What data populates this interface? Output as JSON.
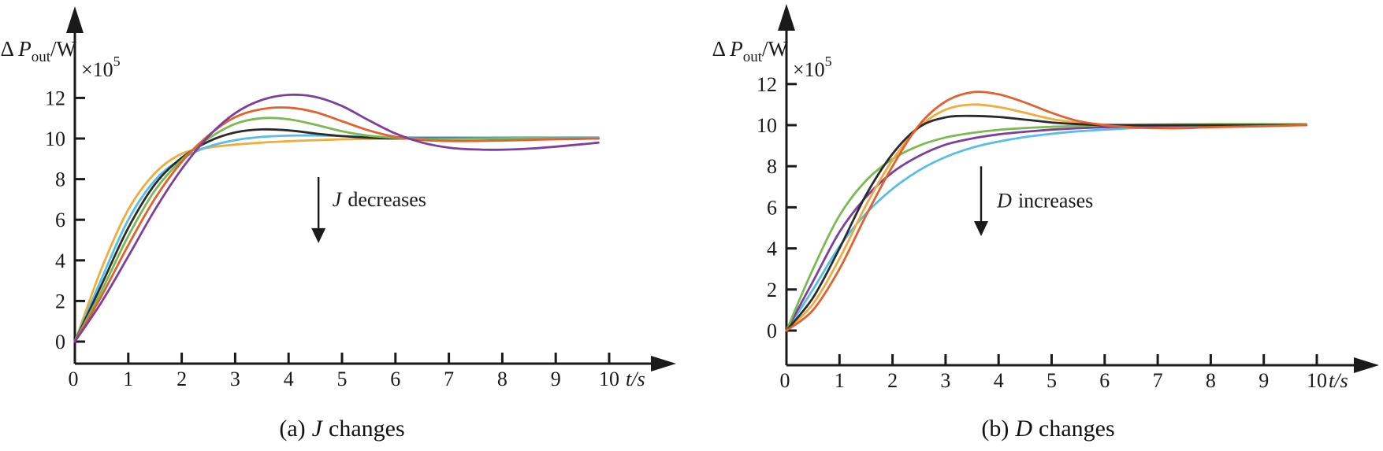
{
  "figure": {
    "background": "#ffffff",
    "axis_color": "#1a1a1a"
  },
  "labels": {
    "y_axis": {
      "prefix": "Δ ",
      "variable": "P",
      "subscript": "out",
      "suffix": "/W"
    },
    "scale": {
      "base": "×10",
      "exponent": "5"
    },
    "x_axis": {
      "variable": "t",
      "suffix": "/s"
    }
  },
  "chart_data": [
    {
      "id": "a",
      "type": "line",
      "title": "(a) J changes",
      "xlabel": "t/s",
      "ylabel": "ΔPout/W (×10^5 W)",
      "xlim": [
        0,
        10
      ],
      "ylim": [
        0,
        12
      ],
      "grid": false,
      "legend": "none",
      "x_ticks": [
        "0",
        "1",
        "2",
        "3",
        "4",
        "5",
        "6",
        "7",
        "8",
        "9",
        "10"
      ],
      "y_ticks": [
        "0",
        "2",
        "4",
        "6",
        "8",
        "10",
        "12"
      ],
      "caption": {
        "index": "(a)",
        "variable": "J",
        "rest": "changes"
      },
      "annotation": {
        "variable": "J",
        "rest": "decreases",
        "direction": "down",
        "arrow": {
          "t": 4.56,
          "v_from": 8.1,
          "v_to": 4.85
        },
        "text_pos": {
          "t": 4.82,
          "v": 6.67
        }
      },
      "series": [
        {
          "name": "yellow",
          "color": "#F2AC3C",
          "points": [
            [
              0,
              0
            ],
            [
              0.5,
              3.6
            ],
            [
              1,
              6.5
            ],
            [
              1.5,
              8.3
            ],
            [
              2,
              9.25
            ],
            [
              2.5,
              9.55
            ],
            [
              3,
              9.7
            ],
            [
              3.5,
              9.8
            ],
            [
              4,
              9.87
            ],
            [
              4.5,
              9.92
            ],
            [
              5,
              9.96
            ],
            [
              5.5,
              9.98
            ],
            [
              6,
              10
            ],
            [
              7,
              10
            ],
            [
              8,
              10
            ],
            [
              9,
              10
            ],
            [
              9.8,
              10
            ]
          ]
        },
        {
          "name": "blue",
          "color": "#56BEE8",
          "points": [
            [
              0,
              0
            ],
            [
              0.5,
              3.1
            ],
            [
              1,
              6.0
            ],
            [
              1.5,
              7.95
            ],
            [
              2,
              9.0
            ],
            [
              2.5,
              9.6
            ],
            [
              3,
              9.92
            ],
            [
              3.5,
              10.08
            ],
            [
              4,
              10.14
            ],
            [
              4.5,
              10.15
            ],
            [
              5,
              10.12
            ],
            [
              5.5,
              10.08
            ],
            [
              6,
              10.06
            ],
            [
              7,
              10.05
            ],
            [
              8,
              10.05
            ],
            [
              9,
              10.05
            ],
            [
              9.8,
              10.05
            ]
          ]
        },
        {
          "name": "black",
          "color": "#2B2B2B",
          "points": [
            [
              0,
              0
            ],
            [
              0.5,
              2.8
            ],
            [
              1,
              5.6
            ],
            [
              1.5,
              7.75
            ],
            [
              2,
              9.05
            ],
            [
              2.5,
              9.85
            ],
            [
              3,
              10.3
            ],
            [
              3.5,
              10.45
            ],
            [
              4,
              10.4
            ],
            [
              4.5,
              10.25
            ],
            [
              5,
              10.12
            ],
            [
              5.5,
              10.04
            ],
            [
              6,
              10
            ],
            [
              7,
              10
            ],
            [
              8,
              10
            ],
            [
              9,
              10
            ],
            [
              9.8,
              10
            ]
          ]
        },
        {
          "name": "green",
          "color": "#7CBA51",
          "points": [
            [
              0,
              0
            ],
            [
              0.5,
              2.5
            ],
            [
              1,
              5.2
            ],
            [
              1.5,
              7.45
            ],
            [
              2,
              8.95
            ],
            [
              2.5,
              10.0
            ],
            [
              3,
              10.72
            ],
            [
              3.5,
              11.0
            ],
            [
              4,
              10.95
            ],
            [
              4.5,
              10.68
            ],
            [
              5,
              10.36
            ],
            [
              5.5,
              10.14
            ],
            [
              6,
              10.03
            ],
            [
              6.5,
              9.98
            ],
            [
              7,
              9.98
            ],
            [
              8,
              10
            ],
            [
              9,
              10
            ],
            [
              9.8,
              10
            ]
          ]
        },
        {
          "name": "orange",
          "color": "#E2612F",
          "points": [
            [
              0,
              0
            ],
            [
              0.5,
              2.25
            ],
            [
              1,
              4.75
            ],
            [
              1.5,
              7.05
            ],
            [
              2,
              8.85
            ],
            [
              2.5,
              10.15
            ],
            [
              3,
              11.05
            ],
            [
              3.5,
              11.45
            ],
            [
              4,
              11.52
            ],
            [
              4.5,
              11.3
            ],
            [
              5,
              10.85
            ],
            [
              5.5,
              10.4
            ],
            [
              6,
              10.08
            ],
            [
              6.5,
              9.93
            ],
            [
              7,
              9.88
            ],
            [
              7.5,
              9.88
            ],
            [
              8,
              9.9
            ],
            [
              8.5,
              9.93
            ],
            [
              9,
              9.96
            ],
            [
              9.8,
              10
            ]
          ]
        },
        {
          "name": "purple",
          "color": "#7E3F9C",
          "points": [
            [
              0,
              0
            ],
            [
              0.5,
              1.95
            ],
            [
              1,
              4.2
            ],
            [
              1.5,
              6.5
            ],
            [
              2,
              8.5
            ],
            [
              2.5,
              10.1
            ],
            [
              3,
              11.25
            ],
            [
              3.5,
              11.9
            ],
            [
              4,
              12.15
            ],
            [
              4.5,
              12.05
            ],
            [
              5,
              11.6
            ],
            [
              5.5,
              10.9
            ],
            [
              6,
              10.25
            ],
            [
              6.5,
              9.8
            ],
            [
              7,
              9.55
            ],
            [
              7.5,
              9.46
            ],
            [
              8,
              9.45
            ],
            [
              8.5,
              9.5
            ],
            [
              9,
              9.6
            ],
            [
              9.5,
              9.72
            ],
            [
              9.8,
              9.8
            ]
          ]
        }
      ]
    },
    {
      "id": "b",
      "type": "line",
      "title": "(b) D changes",
      "xlabel": "t/s",
      "ylabel": "ΔPout/W (×10^5 W)",
      "xlim": [
        0,
        10
      ],
      "ylim": [
        0,
        12
      ],
      "grid": false,
      "legend": "none",
      "x_ticks": [
        "0",
        "1",
        "2",
        "3",
        "4",
        "5",
        "6",
        "7",
        "8",
        "9",
        "10"
      ],
      "y_ticks": [
        "0",
        "2",
        "4",
        "6",
        "8",
        "10",
        "12"
      ],
      "caption": {
        "index": "(b)",
        "variable": "D",
        "rest": "changes"
      },
      "annotation": {
        "variable": "D",
        "rest": "increases",
        "direction": "down",
        "arrow": {
          "t": 3.67,
          "v_from": 8.0,
          "v_to": 4.6
        },
        "text_pos": {
          "t": 3.97,
          "v": 6.0
        }
      },
      "series": [
        {
          "name": "blue",
          "color": "#56BEE8",
          "points": [
            [
              0,
              0
            ],
            [
              0.5,
              2.0
            ],
            [
              1,
              4.1
            ],
            [
              1.5,
              5.7
            ],
            [
              2,
              6.9
            ],
            [
              2.5,
              7.8
            ],
            [
              3,
              8.45
            ],
            [
              3.5,
              8.9
            ],
            [
              4,
              9.2
            ],
            [
              4.5,
              9.42
            ],
            [
              5,
              9.58
            ],
            [
              5.5,
              9.7
            ],
            [
              6,
              9.78
            ],
            [
              6.5,
              9.85
            ],
            [
              7,
              9.9
            ],
            [
              8,
              9.97
            ],
            [
              9,
              10
            ],
            [
              9.8,
              10
            ]
          ]
        },
        {
          "name": "purple",
          "color": "#7E3F9C",
          "points": [
            [
              0,
              0
            ],
            [
              0.5,
              2.4
            ],
            [
              1,
              4.8
            ],
            [
              1.5,
              6.5
            ],
            [
              2,
              7.7
            ],
            [
              2.5,
              8.5
            ],
            [
              3,
              9.05
            ],
            [
              3.5,
              9.35
            ],
            [
              4,
              9.55
            ],
            [
              4.5,
              9.68
            ],
            [
              5,
              9.78
            ],
            [
              5.5,
              9.85
            ],
            [
              6,
              9.9
            ],
            [
              7,
              9.96
            ],
            [
              8,
              10
            ],
            [
              9,
              10
            ],
            [
              9.8,
              10
            ]
          ]
        },
        {
          "name": "green",
          "color": "#7CBA51",
          "points": [
            [
              0,
              0
            ],
            [
              0.5,
              3.0
            ],
            [
              1,
              5.6
            ],
            [
              1.5,
              7.3
            ],
            [
              2,
              8.35
            ],
            [
              2.5,
              9.0
            ],
            [
              3,
              9.4
            ],
            [
              3.5,
              9.62
            ],
            [
              4,
              9.77
            ],
            [
              4.5,
              9.86
            ],
            [
              5,
              9.92
            ],
            [
              5.5,
              9.96
            ],
            [
              6,
              10
            ],
            [
              7,
              10.04
            ],
            [
              8,
              10.05
            ],
            [
              9,
              10.05
            ],
            [
              9.8,
              10.05
            ]
          ]
        },
        {
          "name": "yellow",
          "color": "#F2AC3C",
          "points": [
            [
              0,
              0
            ],
            [
              0.5,
              1.3
            ],
            [
              1,
              3.5
            ],
            [
              1.5,
              6.1
            ],
            [
              2,
              8.3
            ],
            [
              2.5,
              9.9
            ],
            [
              3,
              10.75
            ],
            [
              3.5,
              11.0
            ],
            [
              4,
              10.88
            ],
            [
              4.5,
              10.6
            ],
            [
              5,
              10.3
            ],
            [
              5.5,
              10.12
            ],
            [
              6,
              10.03
            ],
            [
              7,
              10
            ],
            [
              8,
              10
            ],
            [
              9,
              10
            ],
            [
              9.8,
              10
            ]
          ]
        },
        {
          "name": "black",
          "color": "#2B2B2B",
          "points": [
            [
              0,
              0
            ],
            [
              0.5,
              1.6
            ],
            [
              1,
              4.0
            ],
            [
              1.5,
              6.6
            ],
            [
              2,
              8.6
            ],
            [
              2.5,
              9.9
            ],
            [
              3,
              10.38
            ],
            [
              3.5,
              10.45
            ],
            [
              4,
              10.4
            ],
            [
              4.5,
              10.27
            ],
            [
              5,
              10.13
            ],
            [
              5.5,
              10.05
            ],
            [
              6,
              10
            ],
            [
              7,
              10
            ],
            [
              8,
              10
            ],
            [
              9,
              10
            ],
            [
              9.8,
              10
            ]
          ]
        },
        {
          "name": "orange",
          "color": "#E2612F",
          "points": [
            [
              0,
              0
            ],
            [
              0.5,
              1.0
            ],
            [
              1,
              3.0
            ],
            [
              1.5,
              5.6
            ],
            [
              2,
              8.0
            ],
            [
              2.5,
              10.0
            ],
            [
              3,
              11.15
            ],
            [
              3.5,
              11.6
            ],
            [
              4,
              11.5
            ],
            [
              4.5,
              11.1
            ],
            [
              5,
              10.6
            ],
            [
              5.5,
              10.2
            ],
            [
              6,
              10.0
            ],
            [
              6.5,
              9.9
            ],
            [
              7,
              9.85
            ],
            [
              7.5,
              9.85
            ],
            [
              8,
              9.9
            ],
            [
              9,
              9.95
            ],
            [
              9.8,
              10
            ]
          ]
        }
      ]
    }
  ]
}
